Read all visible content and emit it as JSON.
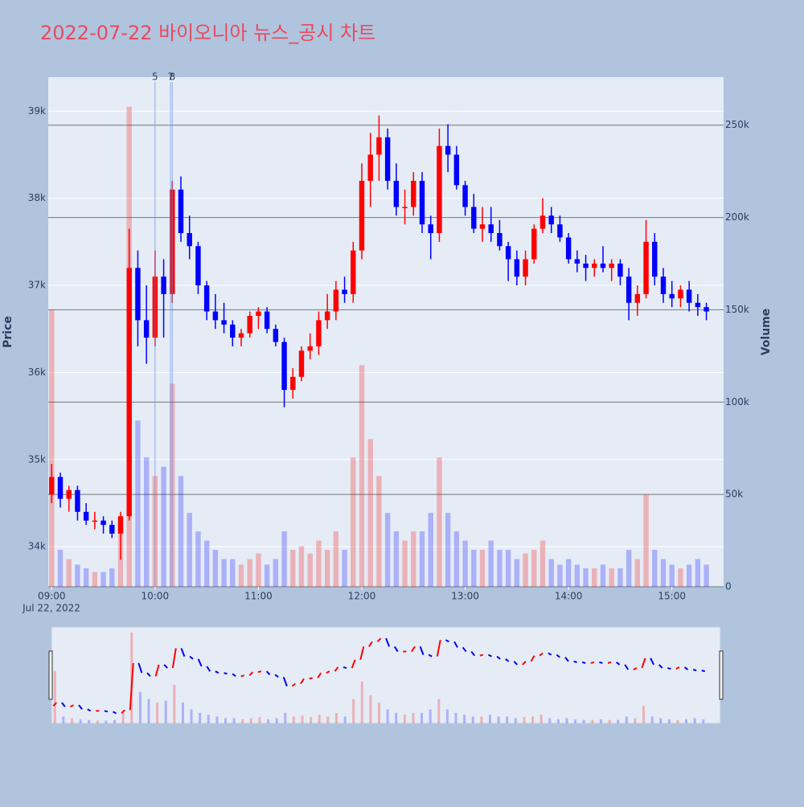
{
  "chart_data": {
    "type": "candlestick",
    "title": "2022-07-22 바이오니아 뉴스_공시 차트",
    "y_label": "Price",
    "y2_label": "Volume",
    "x_sublabel": "Jul 22, 2022",
    "increasing_color": "#ff0000",
    "decreasing_color": "#0000ff",
    "xlim": [
      "2022-07-22 08:58",
      "2022-07-22 15:30"
    ],
    "xticks": [
      {
        "value": "2022-07-22 09:00",
        "label": "09:00"
      },
      {
        "value": "2022-07-22 10:00",
        "label": "10:00"
      },
      {
        "value": "2022-07-22 11:00",
        "label": "11:00"
      },
      {
        "value": "2022-07-22 12:00",
        "label": "12:00"
      },
      {
        "value": "2022-07-22 13:00",
        "label": "13:00"
      },
      {
        "value": "2022-07-22 14:00",
        "label": "14:00"
      },
      {
        "value": "2022-07-22 15:00",
        "label": "15:00"
      }
    ],
    "ylim": [
      33540,
      39390
    ],
    "yticks": [
      {
        "value": 34000,
        "label": "34k"
      },
      {
        "value": 35000,
        "label": "35k"
      },
      {
        "value": 36000,
        "label": "36k"
      },
      {
        "value": 37000,
        "label": "37k"
      },
      {
        "value": 38000,
        "label": "38k"
      },
      {
        "value": 39000,
        "label": "39k"
      }
    ],
    "y2lim": [
      0,
      276000
    ],
    "y2ticks": [
      0,
      {
        "value": 50000,
        "label": "50k"
      },
      {
        "value": 100000,
        "label": "100k"
      },
      {
        "value": 150000,
        "label": "150k"
      },
      {
        "value": 200000,
        "label": "200k"
      },
      {
        "value": 250000,
        "label": "250k"
      }
    ],
    "annotations": [
      {
        "x": "2022-07-22 10:00",
        "text": "5"
      },
      {
        "x": "2022-07-22 10:09",
        "text": "7"
      },
      {
        "x": "2022-07-22 10:10",
        "text": "8"
      }
    ],
    "x": [
      "2022-07-22 09:00",
      "2022-07-22 09:05",
      "2022-07-22 09:10",
      "2022-07-22 09:15",
      "2022-07-22 09:20",
      "2022-07-22 09:25",
      "2022-07-22 09:30",
      "2022-07-22 09:35",
      "2022-07-22 09:40",
      "2022-07-22 09:45",
      "2022-07-22 09:50",
      "2022-07-22 09:55",
      "2022-07-22 10:00",
      "2022-07-22 10:05",
      "2022-07-22 10:10",
      "2022-07-22 10:15",
      "2022-07-22 10:20",
      "2022-07-22 10:25",
      "2022-07-22 10:30",
      "2022-07-22 10:35",
      "2022-07-22 10:40",
      "2022-07-22 10:45",
      "2022-07-22 10:50",
      "2022-07-22 10:55",
      "2022-07-22 11:00",
      "2022-07-22 11:05",
      "2022-07-22 11:10",
      "2022-07-22 11:15",
      "2022-07-22 11:20",
      "2022-07-22 11:25",
      "2022-07-22 11:30",
      "2022-07-22 11:35",
      "2022-07-22 11:40",
      "2022-07-22 11:45",
      "2022-07-22 11:50",
      "2022-07-22 11:55",
      "2022-07-22 12:00",
      "2022-07-22 12:05",
      "2022-07-22 12:10",
      "2022-07-22 12:15",
      "2022-07-22 12:20",
      "2022-07-22 12:25",
      "2022-07-22 12:30",
      "2022-07-22 12:35",
      "2022-07-22 12:40",
      "2022-07-22 12:45",
      "2022-07-22 12:50",
      "2022-07-22 12:55",
      "2022-07-22 13:00",
      "2022-07-22 13:05",
      "2022-07-22 13:10",
      "2022-07-22 13:15",
      "2022-07-22 13:20",
      "2022-07-22 13:25",
      "2022-07-22 13:30",
      "2022-07-22 13:35",
      "2022-07-22 13:40",
      "2022-07-22 13:45",
      "2022-07-22 13:50",
      "2022-07-22 13:55",
      "2022-07-22 14:00",
      "2022-07-22 14:05",
      "2022-07-22 14:10",
      "2022-07-22 14:15",
      "2022-07-22 14:20",
      "2022-07-22 14:25",
      "2022-07-22 14:30",
      "2022-07-22 14:35",
      "2022-07-22 14:40",
      "2022-07-22 14:45",
      "2022-07-22 14:50",
      "2022-07-22 14:55",
      "2022-07-22 15:00",
      "2022-07-22 15:05",
      "2022-07-22 15:10",
      "2022-07-22 15:15",
      "2022-07-22 15:20"
    ],
    "open": [
      34600,
      34800,
      34550,
      34650,
      34400,
      34300,
      34300,
      34250,
      34150,
      34350,
      37200,
      36600,
      36400,
      37100,
      36900,
      38100,
      37600,
      37450,
      37000,
      36700,
      36600,
      36550,
      36400,
      36450,
      36650,
      36700,
      36500,
      36350,
      35800,
      35950,
      36250,
      36300,
      36600,
      36700,
      36950,
      36900,
      37400,
      38200,
      38500,
      38700,
      38200,
      37900,
      37900,
      38200,
      37700,
      37600,
      38600,
      38500,
      38150,
      37900,
      37650,
      37700,
      37600,
      37450,
      37300,
      37100,
      37300,
      37650,
      37800,
      37700,
      37550,
      37300,
      37250,
      37200,
      37250,
      37200,
      37250,
      37100,
      36800,
      36900,
      37500,
      37100,
      36900,
      36850,
      36950,
      36800,
      36750
    ],
    "high": [
      34950,
      34850,
      34700,
      34700,
      34500,
      34400,
      34350,
      34300,
      34400,
      37650,
      37400,
      37000,
      37400,
      37300,
      38200,
      38250,
      37800,
      37500,
      37050,
      36900,
      36800,
      36600,
      36500,
      36700,
      36750,
      36750,
      36550,
      36400,
      36050,
      36300,
      36450,
      36700,
      36900,
      37050,
      37100,
      37500,
      38400,
      38750,
      38950,
      38800,
      38400,
      38100,
      38300,
      38300,
      37800,
      38800,
      38850,
      38600,
      38200,
      38050,
      37900,
      37900,
      37750,
      37500,
      37400,
      37400,
      37700,
      38000,
      37900,
      37800,
      37600,
      37400,
      37350,
      37300,
      37450,
      37300,
      37300,
      37200,
      37000,
      37750,
      37600,
      37200,
      37050,
      37000,
      37050,
      36900,
      36800
    ],
    "low": [
      34500,
      34450,
      34400,
      34300,
      34250,
      34200,
      34150,
      34100,
      33850,
      34300,
      36300,
      36100,
      36300,
      36400,
      36800,
      37500,
      37300,
      36900,
      36600,
      36500,
      36450,
      36300,
      36300,
      36400,
      36500,
      36450,
      36300,
      35600,
      35700,
      35900,
      36150,
      36200,
      36500,
      36600,
      36800,
      36800,
      37300,
      37900,
      38200,
      38100,
      37800,
      37700,
      37800,
      37600,
      37300,
      37500,
      38300,
      38100,
      37800,
      37600,
      37500,
      37500,
      37400,
      37050,
      37000,
      37000,
      37250,
      37600,
      37600,
      37500,
      37250,
      37150,
      37050,
      37100,
      37150,
      37050,
      37000,
      36600,
      36650,
      36850,
      37000,
      36800,
      36750,
      36750,
      36700,
      36650,
      36600
    ],
    "close": [
      34800,
      34550,
      34650,
      34400,
      34300,
      34300,
      34250,
      34150,
      34350,
      37200,
      36600,
      36400,
      37100,
      36900,
      38100,
      37600,
      37450,
      37000,
      36700,
      36600,
      36550,
      36400,
      36450,
      36650,
      36700,
      36500,
      36350,
      35800,
      35950,
      36250,
      36300,
      36600,
      36700,
      36950,
      36900,
      37400,
      38200,
      38500,
      38700,
      38200,
      37900,
      37900,
      38200,
      37700,
      37600,
      38600,
      38500,
      38150,
      37900,
      37650,
      37700,
      37600,
      37450,
      37300,
      37100,
      37300,
      37650,
      37800,
      37700,
      37550,
      37300,
      37250,
      37200,
      37250,
      37200,
      37250,
      37100,
      36800,
      36900,
      37500,
      37100,
      36900,
      36850,
      36950,
      36800,
      36750,
      36700
    ],
    "volume": [
      150000,
      20000,
      15000,
      12000,
      10000,
      8000,
      8000,
      10000,
      30000,
      260000,
      90000,
      70000,
      60000,
      65000,
      110000,
      60000,
      40000,
      30000,
      25000,
      20000,
      15000,
      15000,
      12000,
      15000,
      18000,
      12000,
      15000,
      30000,
      20000,
      22000,
      18000,
      25000,
      20000,
      30000,
      20000,
      70000,
      120000,
      80000,
      60000,
      40000,
      30000,
      25000,
      30000,
      30000,
      40000,
      70000,
      40000,
      30000,
      25000,
      20000,
      20000,
      25000,
      20000,
      20000,
      15000,
      18000,
      20000,
      25000,
      15000,
      12000,
      15000,
      12000,
      10000,
      10000,
      12000,
      10000,
      10000,
      20000,
      15000,
      50000,
      20000,
      15000,
      12000,
      10000,
      12000,
      15000,
      12000
    ]
  }
}
